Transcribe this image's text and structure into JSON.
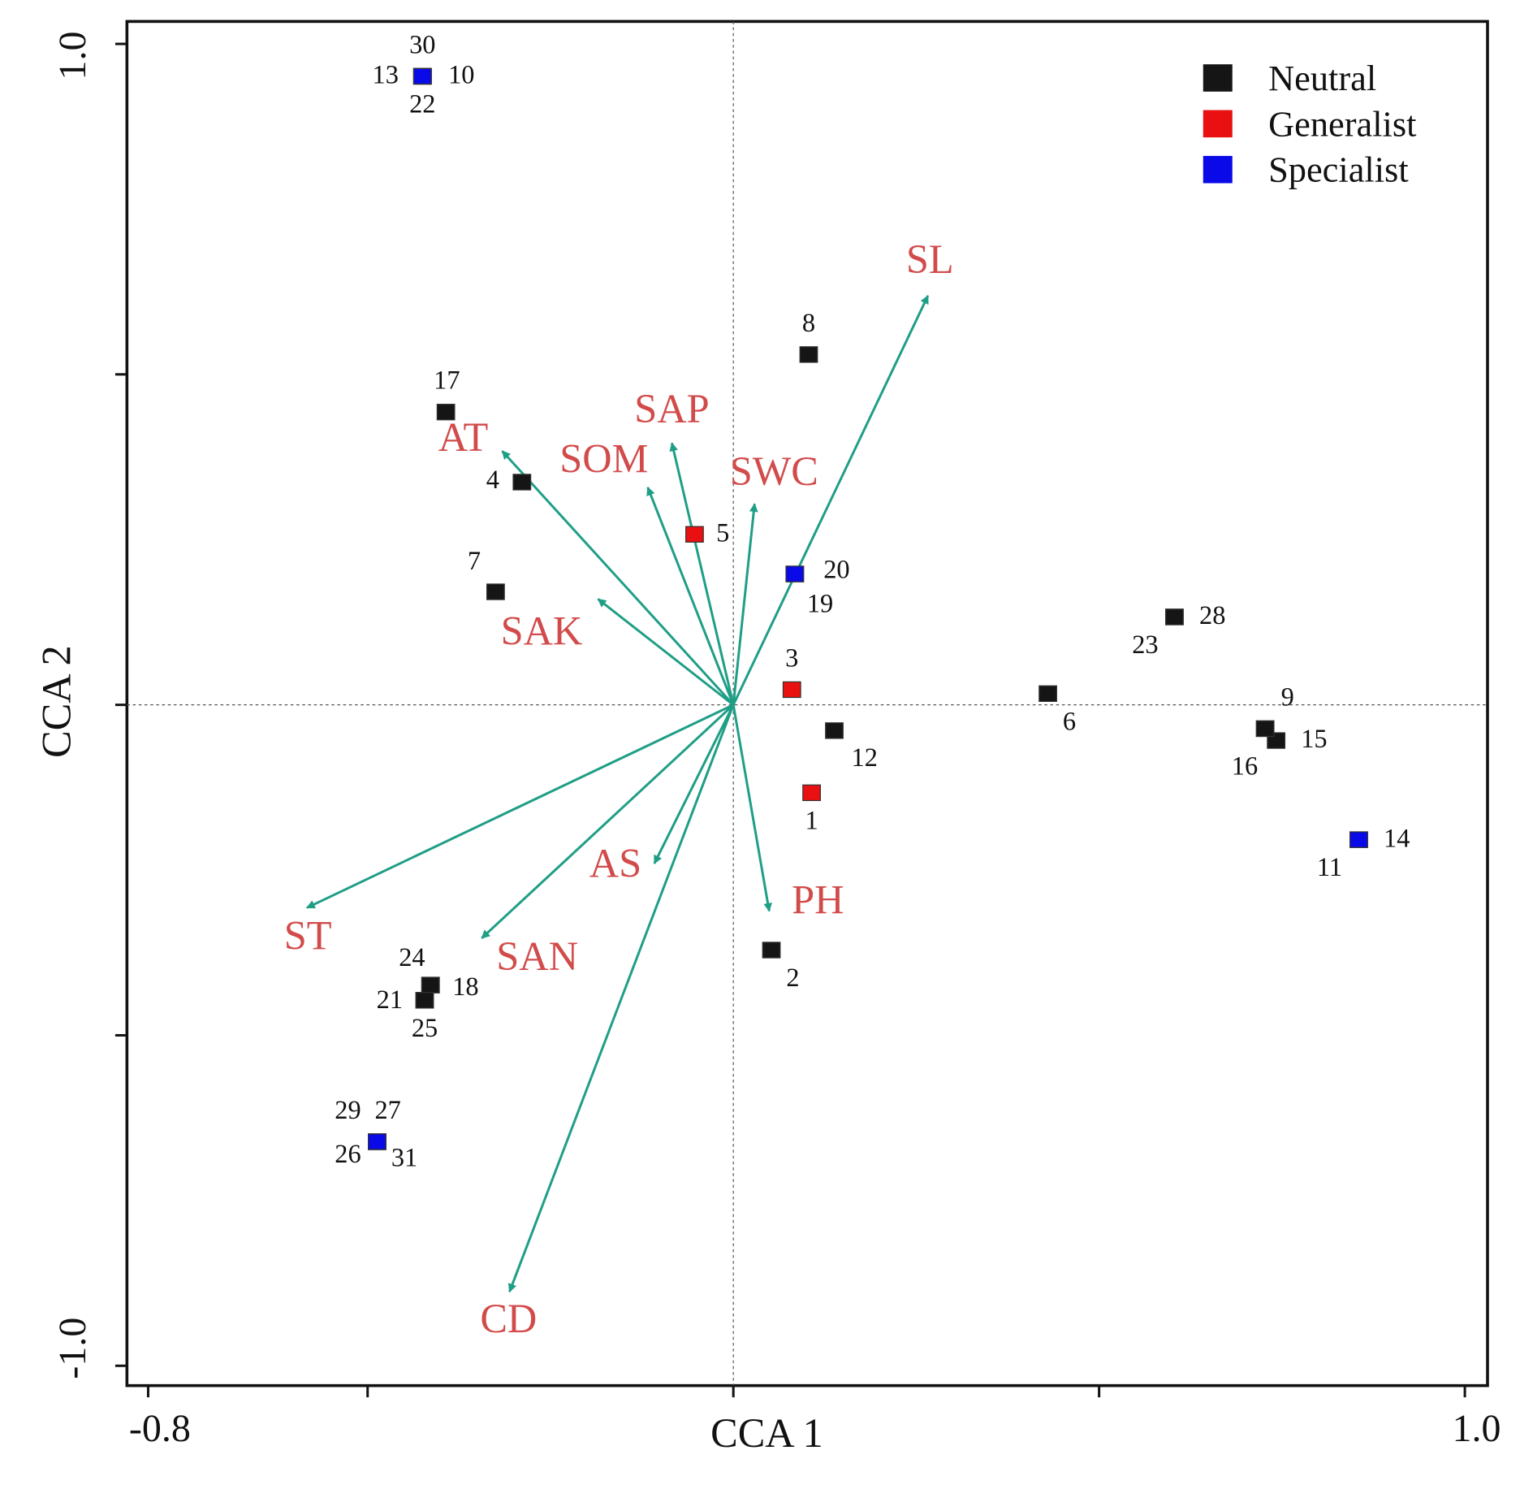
{
  "chart_data": {
    "type": "scatter",
    "x_label": "CCA 1",
    "y_label": "CCA 2",
    "xlim": [
      -0.829,
      1.031
    ],
    "ylim": [
      -1.03,
      1.034
    ],
    "xticks": [
      -0.8,
      {
        "value": 1,
        "label": "1.0"
      }
    ],
    "xminor_ticks": [
      -0.5,
      0,
      0.5
    ],
    "yticks": [
      {
        "value": 1,
        "label": "1.0"
      },
      {
        "value": -1,
        "label": "-1.0"
      }
    ],
    "yminor_ticks": [
      0.5,
      0,
      -0.5
    ],
    "legend": "upper right",
    "series": [
      {
        "name": "Neutral",
        "color": "#151515",
        "labels": [
          "2",
          "4",
          "6",
          "7",
          "8",
          "9",
          "12",
          "15",
          "16",
          "17",
          "18",
          "21",
          "23",
          "24",
          "25",
          "28"
        ],
        "x": [
          0.052,
          -0.289,
          0.43,
          -0.325,
          0.103,
          0.727,
          0.138,
          0.742,
          0.727,
          -0.393,
          -0.414,
          -0.422,
          0.603,
          -0.414,
          -0.422,
          0.603
        ],
        "y": [
          -0.371,
          0.337,
          0.017,
          0.171,
          0.53,
          -0.036,
          -0.039,
          -0.054,
          -0.036,
          0.443,
          -0.424,
          -0.447,
          0.133,
          -0.424,
          -0.447,
          0.133
        ]
      },
      {
        "name": "Generalist",
        "color": "#e81010",
        "labels": [
          "1",
          "3",
          "5"
        ],
        "x": [
          0.107,
          0.08,
          -0.053
        ],
        "y": [
          -0.133,
          0.023,
          0.258
        ]
      },
      {
        "name": "Specialist",
        "color": "#0a0ae8",
        "labels": [
          "10",
          "11",
          "13",
          "14",
          "19",
          "20",
          "22",
          "26",
          "27",
          "29",
          "30",
          "31"
        ],
        "x": [
          -0.425,
          0.855,
          -0.425,
          0.855,
          0.084,
          0.084,
          -0.425,
          -0.487,
          -0.487,
          -0.487,
          -0.425,
          -0.487
        ],
        "y": [
          0.951,
          -0.204,
          0.951,
          -0.204,
          0.198,
          0.198,
          0.951,
          -0.661,
          -0.661,
          -0.661,
          0.951,
          -0.661
        ]
      }
    ],
    "vector_color": "#1f9e86",
    "vectors": [
      {
        "name": "SL",
        "x": 0.266,
        "y": 0.619
      },
      {
        "name": "SAP",
        "x": -0.084,
        "y": 0.396
      },
      {
        "name": "SOM",
        "x": -0.117,
        "y": 0.329
      },
      {
        "name": "SWC",
        "x": 0.029,
        "y": 0.304
      },
      {
        "name": "AT",
        "x": -0.316,
        "y": 0.384
      },
      {
        "name": "SAK",
        "x": -0.185,
        "y": 0.16
      },
      {
        "name": "ST",
        "x": -0.583,
        "y": -0.307
      },
      {
        "name": "SAN",
        "x": -0.344,
        "y": -0.353
      },
      {
        "name": "AS",
        "x": -0.108,
        "y": -0.24
      },
      {
        "name": "PH",
        "x": 0.049,
        "y": -0.312
      },
      {
        "name": "CD",
        "x": -0.306,
        "y": -0.888
      }
    ]
  }
}
